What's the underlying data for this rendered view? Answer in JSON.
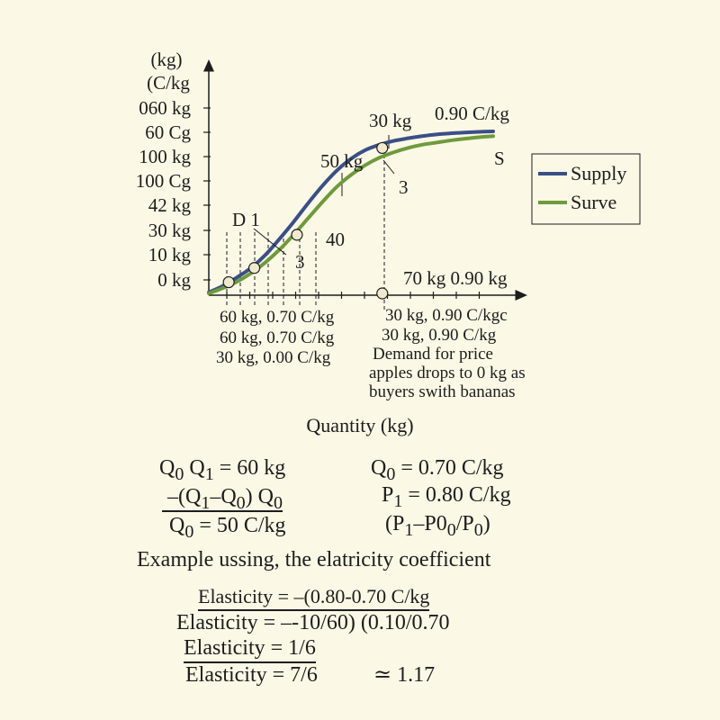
{
  "chart_data": {
    "type": "line",
    "title": "",
    "xlabel": "Quantity (kg)",
    "ylabel_lines": [
      "(kg)",
      "(C/kg"
    ],
    "y_tick_labels": [
      "060 kg",
      "60 Cg",
      "100 kg",
      "100 Cg",
      "42 kg",
      "30 kg",
      "10 kg",
      "0 kg"
    ],
    "x_tick_count": 12,
    "legend": {
      "position": "right",
      "entries": [
        "Supply",
        "Surve"
      ]
    },
    "series": [
      {
        "name": "Supply",
        "color": "#3b4f86",
        "x": [
          0,
          0.5,
          1,
          1.5,
          2,
          2.5,
          3,
          3.5,
          4,
          4.5,
          5,
          5.5,
          6,
          6.5,
          7,
          7.5,
          8,
          8.5,
          9,
          9.5,
          10
        ],
        "y": [
          0.05,
          0.35,
          0.75,
          1.2,
          1.8,
          2.55,
          3.35,
          4.2,
          5.0,
          5.7,
          6.25,
          6.65,
          6.9,
          7.08,
          7.2,
          7.3,
          7.38,
          7.43,
          7.47,
          7.5,
          7.52
        ]
      },
      {
        "name": "Surve",
        "color": "#6e9a3c",
        "x": [
          0,
          0.5,
          1,
          1.5,
          2,
          2.5,
          3,
          3.5,
          4,
          4.5,
          5,
          5.5,
          6,
          6.5,
          7,
          7.5,
          8,
          8.5,
          9,
          9.5,
          10
        ],
        "y": [
          0.0,
          0.25,
          0.55,
          0.95,
          1.45,
          2.05,
          2.75,
          3.5,
          4.25,
          4.95,
          5.5,
          5.95,
          6.3,
          6.55,
          6.75,
          6.9,
          7.0,
          7.1,
          7.18,
          7.25,
          7.3
        ]
      }
    ],
    "points": [
      {
        "x": 0.7,
        "y": 0.52
      },
      {
        "x": 1.6,
        "y": 1.18
      },
      {
        "x": 3.1,
        "y": 2.72
      },
      {
        "x": 6.1,
        "y": 6.75
      },
      {
        "x": 6.1,
        "y": 0.0
      }
    ],
    "curve_labels": {
      "D": "D 1",
      "label_50kg": "50 kg",
      "label_30kg": "30 kg",
      "label_090": "0.90 C/kg",
      "label_S": "S",
      "label_3a": "3",
      "label_3b": "3",
      "label_40": "40"
    },
    "annotations": {
      "x_axis_right": "70 kg 0.90 kg",
      "below_left": [
        "60 kg, 0.70 C/kg",
        "60 kg, 0.70 C/kg",
        "30 kg, 0.00 C/kg"
      ],
      "below_right": [
        "30 kg, 0.90 C/kgc",
        "30 kg, 0.90 C/kg",
        "Demand for price",
        "apples drops to 0 kg as",
        "buyers swith bananas"
      ]
    }
  },
  "formulas": {
    "left": [
      "Q0 Q1 = 60 kg",
      "–(Q1–Q0) Q0",
      "Q0 = 50 C/kg"
    ],
    "right": [
      "Q0 = 0.70 C/kg",
      "P1 = 0.80 C/kg",
      "(P1–P0/P0)"
    ],
    "heading": "Example ussing, the elatricity coefficient",
    "lines": [
      "Elasticity = –(0.80-0.70 C/kg",
      "Elasticity = –-10/60)  (0.10/0.70",
      "Elasticity = 1/6",
      "Elasticity = 7/6"
    ],
    "approx": "≃ 1.17"
  }
}
